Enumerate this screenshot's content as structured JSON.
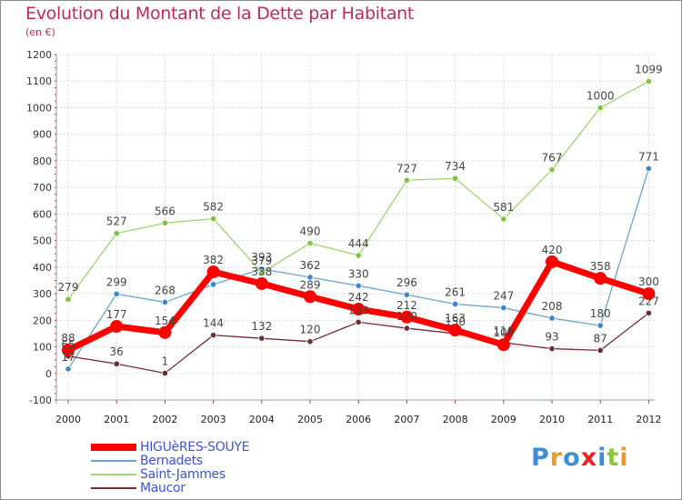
{
  "title": "Evolution du Montant de la Dette par Habitant",
  "subtitle": "(en €)",
  "logo": {
    "text": "Proxiti",
    "colors": [
      "#3a8fd9",
      "#e89a2a",
      "#3a8fd9",
      "#e8262a",
      "#3a8fd9",
      "#8cc63f",
      "#e89a2a"
    ]
  },
  "chart_data": {
    "type": "line",
    "x": [
      "2000",
      "2001",
      "2002",
      "2003",
      "2004",
      "2005",
      "2006",
      "2007",
      "2008",
      "2009",
      "2010",
      "2011",
      "2012"
    ],
    "ylim": [
      -100,
      1200
    ],
    "yticks": [
      -100,
      0,
      100,
      200,
      300,
      400,
      500,
      600,
      700,
      800,
      900,
      1000,
      1100,
      1200
    ],
    "grid": true,
    "legend_position": "bottom-left",
    "series": [
      {
        "name": "HIGUèRES-SOUYE",
        "color": "#ff0000",
        "point_color": "#ff0000",
        "width": 7,
        "values": [
          88,
          177,
          154,
          382,
          338,
          289,
          242,
          212,
          163,
          108,
          420,
          358,
          300
        ],
        "labels": [
          "88",
          "177",
          "154",
          "382",
          "338",
          "289",
          "242",
          "212",
          "163",
          "108",
          "420",
          "358",
          "300"
        ]
      },
      {
        "name": "Bernadets",
        "color": "#6aa3d4",
        "point_color": "#3a86d4",
        "width": 1.3,
        "values": [
          17,
          299,
          268,
          335,
          393,
          362,
          330,
          296,
          261,
          247,
          208,
          180,
          771
        ],
        "labels": [
          "17",
          "299",
          "268",
          "",
          "393",
          "362",
          "330",
          "296",
          "261",
          "247",
          "208",
          "180",
          "771"
        ]
      },
      {
        "name": "Saint-Jammes",
        "color": "#9dd56e",
        "point_color": "#7cc63b",
        "width": 1.3,
        "values": [
          279,
          527,
          566,
          582,
          379,
          490,
          444,
          727,
          734,
          581,
          767,
          1000,
          1099
        ],
        "labels": [
          "279",
          "527",
          "566",
          "582",
          "379",
          "490",
          "444",
          "727",
          "734",
          "581",
          "767",
          "1000",
          "1099"
        ]
      },
      {
        "name": "Maucor",
        "color": "#7a2a32",
        "point_color": "#6e2a2e",
        "width": 1.3,
        "values": [
          65,
          36,
          1,
          144,
          132,
          120,
          193,
          170,
          150,
          116,
          93,
          87,
          227
        ],
        "labels": [
          "65",
          "36",
          "1",
          "144",
          "132",
          "120",
          "193",
          "170",
          "150",
          "116",
          "93",
          "87",
          "227"
        ]
      }
    ]
  }
}
